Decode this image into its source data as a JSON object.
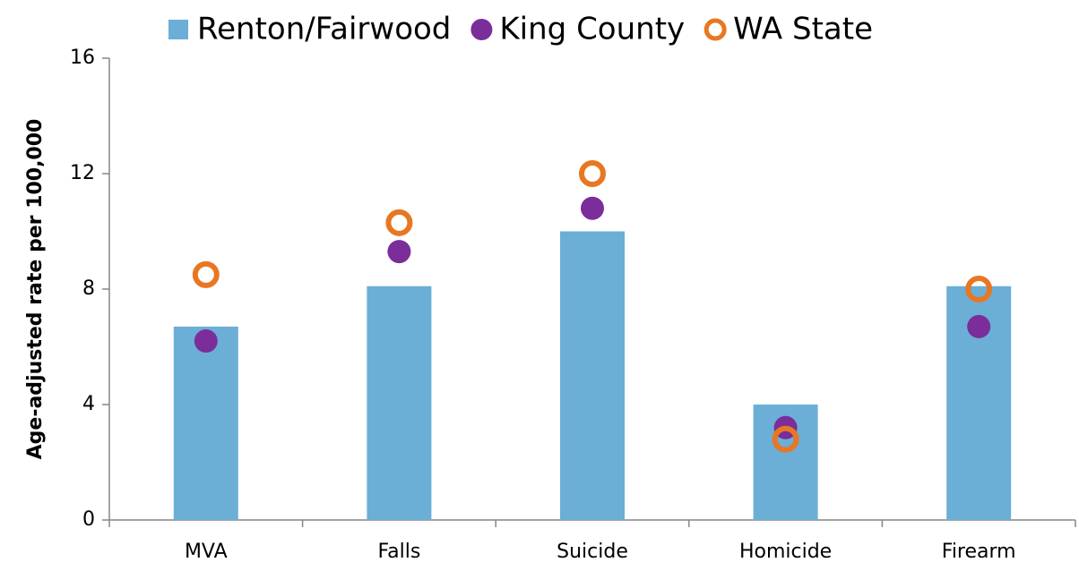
{
  "chart_data": {
    "type": "bar",
    "y_label": "Age-adjusted rate per 100,000",
    "categories": [
      "MVA",
      "Falls",
      "Suicide",
      "Homicide",
      "Firearm"
    ],
    "series": [
      {
        "name": "Renton/Fairwood",
        "color": "#6baed6",
        "marker": "bar",
        "values": [
          6.7,
          8.1,
          10.0,
          4.0,
          8.1
        ]
      },
      {
        "name": "King County",
        "color": "#7b2d9a",
        "marker": "circle",
        "values": [
          6.2,
          9.3,
          10.8,
          3.2,
          6.7
        ]
      },
      {
        "name": "WA State",
        "color": "#e87722",
        "marker": "ring",
        "values": [
          8.5,
          10.3,
          12.0,
          2.8,
          8.0
        ]
      }
    ],
    "ylim": [
      0,
      16
    ],
    "yticks": [
      0,
      4,
      8,
      12,
      16
    ],
    "grid": false
  }
}
